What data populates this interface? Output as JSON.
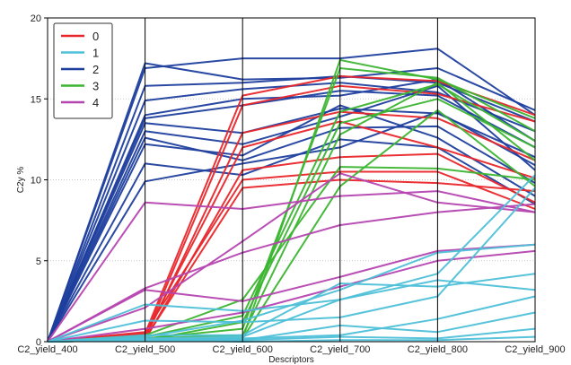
{
  "chart_data": {
    "type": "line",
    "subtype": "parallel-coordinates",
    "title": "",
    "xlabel": "Descriptors",
    "ylabel": "C2y %",
    "ylim": [
      0,
      20
    ],
    "yticks": [
      0,
      5,
      10,
      15,
      20
    ],
    "categories": [
      "C2_yield_400",
      "C2_yield_500",
      "C2_yield_600",
      "C2_yield_700",
      "C2_yield_800",
      "C2_yield_900"
    ],
    "grid": true,
    "legend_position": "top-left",
    "legend": [
      {
        "label": "0",
        "color": "#e8262b"
      },
      {
        "label": "1",
        "color": "#4ec0d8"
      },
      {
        "label": "2",
        "color": "#1f3f9e"
      },
      {
        "label": "3",
        "color": "#3cb532"
      },
      {
        "label": "4",
        "color": "#b545b0"
      }
    ],
    "series": [
      {
        "group": "2",
        "values": [
          0,
          17.2,
          16.2,
          16.3,
          16.9,
          14.3
        ]
      },
      {
        "group": "2",
        "values": [
          0,
          16.9,
          17.5,
          17.5,
          18.1,
          14.0
        ]
      },
      {
        "group": "2",
        "values": [
          0,
          15.8,
          16.0,
          16.4,
          16.0,
          13.6
        ]
      },
      {
        "group": "2",
        "values": [
          0,
          14.9,
          15.6,
          16.0,
          15.4,
          13.0
        ]
      },
      {
        "group": "2",
        "values": [
          0,
          14.0,
          15.0,
          15.2,
          16.2,
          12.4
        ]
      },
      {
        "group": "2",
        "values": [
          0,
          13.8,
          14.6,
          15.5,
          15.2,
          12.0
        ]
      },
      {
        "group": "2",
        "values": [
          0,
          13.5,
          12.9,
          14.4,
          14.1,
          11.4
        ]
      },
      {
        "group": "2",
        "values": [
          0,
          13.0,
          12.2,
          13.9,
          15.8,
          10.6
        ]
      },
      {
        "group": "2",
        "values": [
          0,
          12.6,
          11.2,
          13.2,
          13.3,
          9.8
        ]
      },
      {
        "group": "2",
        "values": [
          0,
          12.2,
          11.5,
          14.6,
          12.6,
          9.0
        ]
      },
      {
        "group": "2",
        "values": [
          0,
          11.0,
          10.3,
          12.5,
          12.0,
          8.5
        ]
      },
      {
        "group": "2",
        "values": [
          0,
          9.9,
          11.0,
          12.0,
          14.2,
          10.9
        ]
      },
      {
        "group": "0",
        "values": [
          0,
          0.5,
          15.2,
          16.4,
          16.1,
          14.0
        ]
      },
      {
        "group": "0",
        "values": [
          0,
          0.3,
          14.6,
          15.8,
          15.3,
          13.6
        ]
      },
      {
        "group": "0",
        "values": [
          0,
          0.2,
          12.9,
          14.2,
          13.8,
          11.2
        ]
      },
      {
        "group": "0",
        "values": [
          0,
          0.4,
          12.0,
          13.6,
          12.0,
          10.1
        ]
      },
      {
        "group": "0",
        "values": [
          0,
          0.1,
          10.6,
          11.4,
          11.6,
          8.6
        ]
      },
      {
        "group": "0",
        "values": [
          0,
          0.6,
          10.0,
          10.5,
          10.5,
          8.2
        ]
      },
      {
        "group": "0",
        "values": [
          0,
          0.2,
          9.5,
          10.0,
          9.8,
          9.3
        ]
      },
      {
        "group": "3",
        "values": [
          0,
          0.1,
          0.2,
          17.4,
          16.2,
          13.8
        ]
      },
      {
        "group": "3",
        "values": [
          0,
          0.2,
          0.8,
          16.9,
          16.3,
          13.0
        ]
      },
      {
        "group": "3",
        "values": [
          0,
          0.3,
          1.6,
          14.2,
          15.9,
          12.4
        ]
      },
      {
        "group": "3",
        "values": [
          0,
          0.1,
          1.2,
          13.5,
          15.0,
          12.0
        ]
      },
      {
        "group": "3",
        "values": [
          0,
          0.2,
          0.4,
          12.8,
          16.0,
          11.2
        ]
      },
      {
        "group": "3",
        "values": [
          0,
          0.4,
          2.6,
          10.8,
          10.7,
          10.0
        ]
      },
      {
        "group": "3",
        "values": [
          0,
          0.1,
          0.2,
          9.6,
          14.3,
          9.6
        ]
      },
      {
        "group": "4",
        "values": [
          0,
          8.6,
          8.2,
          9.0,
          9.3,
          8.0
        ]
      },
      {
        "group": "4",
        "values": [
          0,
          3.3,
          5.5,
          7.2,
          8.0,
          8.5
        ]
      },
      {
        "group": "4",
        "values": [
          0,
          3.2,
          2.5,
          4.0,
          5.6,
          6.0
        ]
      },
      {
        "group": "4",
        "values": [
          0,
          0.8,
          1.8,
          3.4,
          5.0,
          5.6
        ]
      },
      {
        "group": "4",
        "values": [
          0,
          2.1,
          6.2,
          10.4,
          8.6,
          8.0
        ]
      },
      {
        "group": "1",
        "values": [
          0,
          2.3,
          1.9,
          2.6,
          4.2,
          10.3
        ]
      },
      {
        "group": "1",
        "values": [
          0,
          1.3,
          1.2,
          1.5,
          2.8,
          9.5
        ]
      },
      {
        "group": "1",
        "values": [
          0,
          0.3,
          1.3,
          3.2,
          5.5,
          6.0
        ]
      },
      {
        "group": "1",
        "values": [
          0,
          0.4,
          0.4,
          3.6,
          3.4,
          4.2
        ]
      },
      {
        "group": "1",
        "values": [
          0,
          0.2,
          0.3,
          2.6,
          3.8,
          3.2
        ]
      },
      {
        "group": "1",
        "values": [
          0,
          0.1,
          0.2,
          0.4,
          1.4,
          2.8
        ]
      },
      {
        "group": "1",
        "values": [
          0,
          0.2,
          0.1,
          1.0,
          0.6,
          1.8
        ]
      },
      {
        "group": "1",
        "values": [
          0,
          0.1,
          0.1,
          0.3,
          0.2,
          0.8
        ]
      },
      {
        "group": "1",
        "values": [
          0,
          0.1,
          0.0,
          0.1,
          0.1,
          0.3
        ]
      }
    ]
  }
}
